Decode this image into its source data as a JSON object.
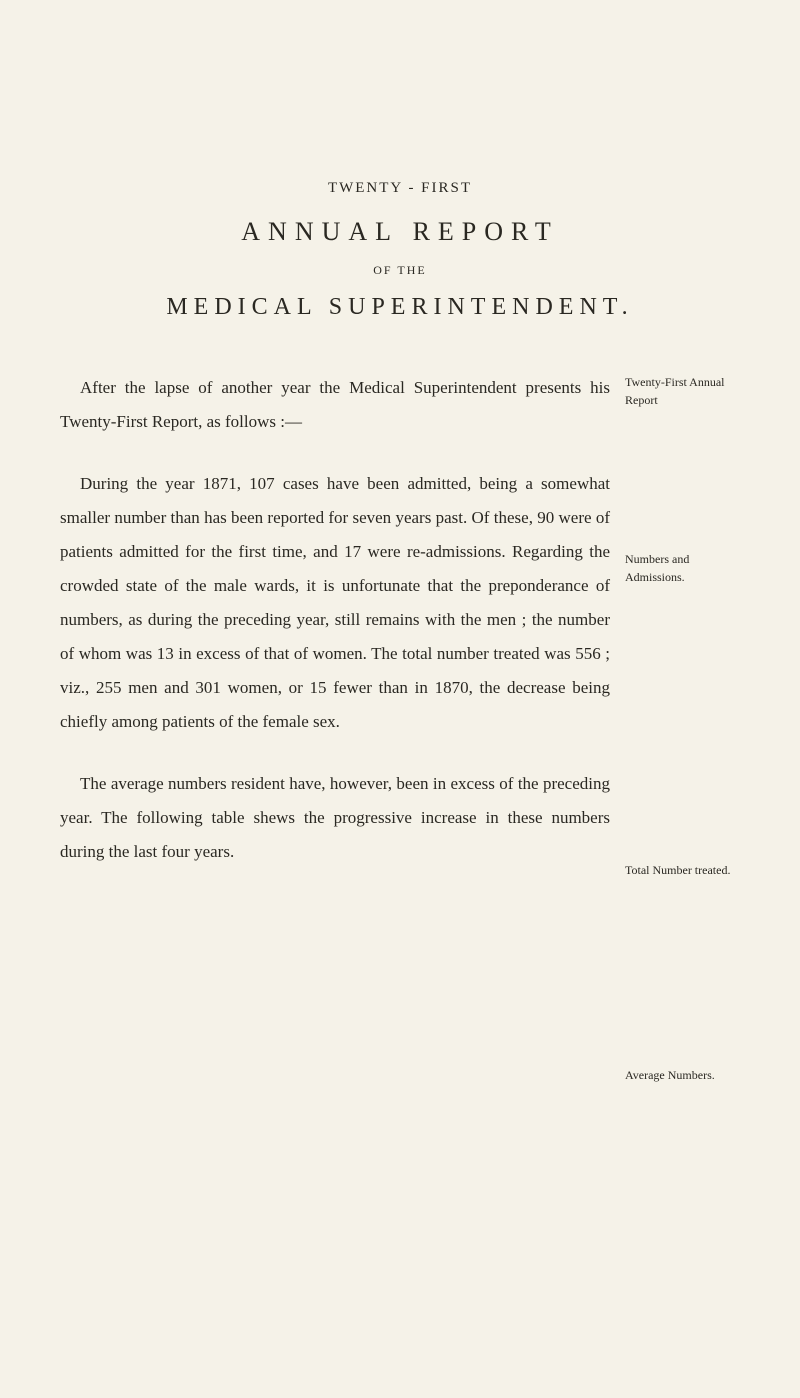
{
  "headings": {
    "twenty_first": "TWENTY - FIRST",
    "annual_report": "ANNUAL REPORT",
    "of_the": "OF THE",
    "medical_super": "MEDICAL SUPERINTENDENT."
  },
  "paragraphs": {
    "p1": "After the lapse of another year the Medical Superintendent presents his Twenty-First Report, as follows :—",
    "p2": "During the year 1871, 107 cases have been ad­mitted, being a somewhat smaller number than has been reported for seven years past. Of these, 90 were of patients admitted for the first time, and 17 were re-admissions. Regarding the crowded state of the male wards, it is unfortunate that the prepon­derance of numbers, as during the preceding year, still remains with the men ; the number of whom was 13 in excess of that of women. The total number treated was 556 ; viz., 255 men and 301 women, or 15 fewer than in 1870, the decrease being chiefly among patients of the female sex.",
    "p3": "The average numbers resident have, however, been in excess of the preceding year. The follow­ing table shews the progressive increase in these numbers during the last four years."
  },
  "margin_notes": {
    "m1": "Twenty-First Annual Report",
    "m2": "Numbers and Admissions.",
    "m3": "Total Number treated.",
    "m4": "Average Numbers."
  }
}
